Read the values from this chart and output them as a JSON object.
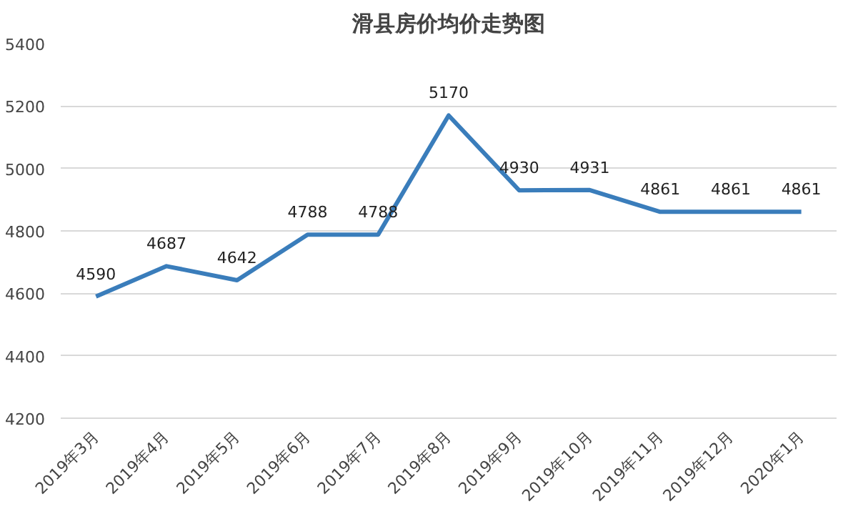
{
  "chart_data": {
    "type": "line",
    "title": "滑县房价均价走势图",
    "categories": [
      "2019年3月",
      "2019年4月",
      "2019年5月",
      "2019年6月",
      "2019年7月",
      "2019年8月",
      "2019年9月",
      "2019年10月",
      "2019年11月",
      "2019年12月",
      "2020年1月"
    ],
    "values": [
      4590,
      4687,
      4642,
      4788,
      4788,
      5170,
      4930,
      4931,
      4861,
      4861,
      4861
    ],
    "color": "#3a7dbb",
    "ylim": [
      4200,
      5400
    ],
    "yticks": [
      4200,
      4400,
      4600,
      4800,
      5000,
      5200,
      5400
    ],
    "grid": "y",
    "data_labels": true,
    "marker": "none",
    "line_style": "solid"
  }
}
